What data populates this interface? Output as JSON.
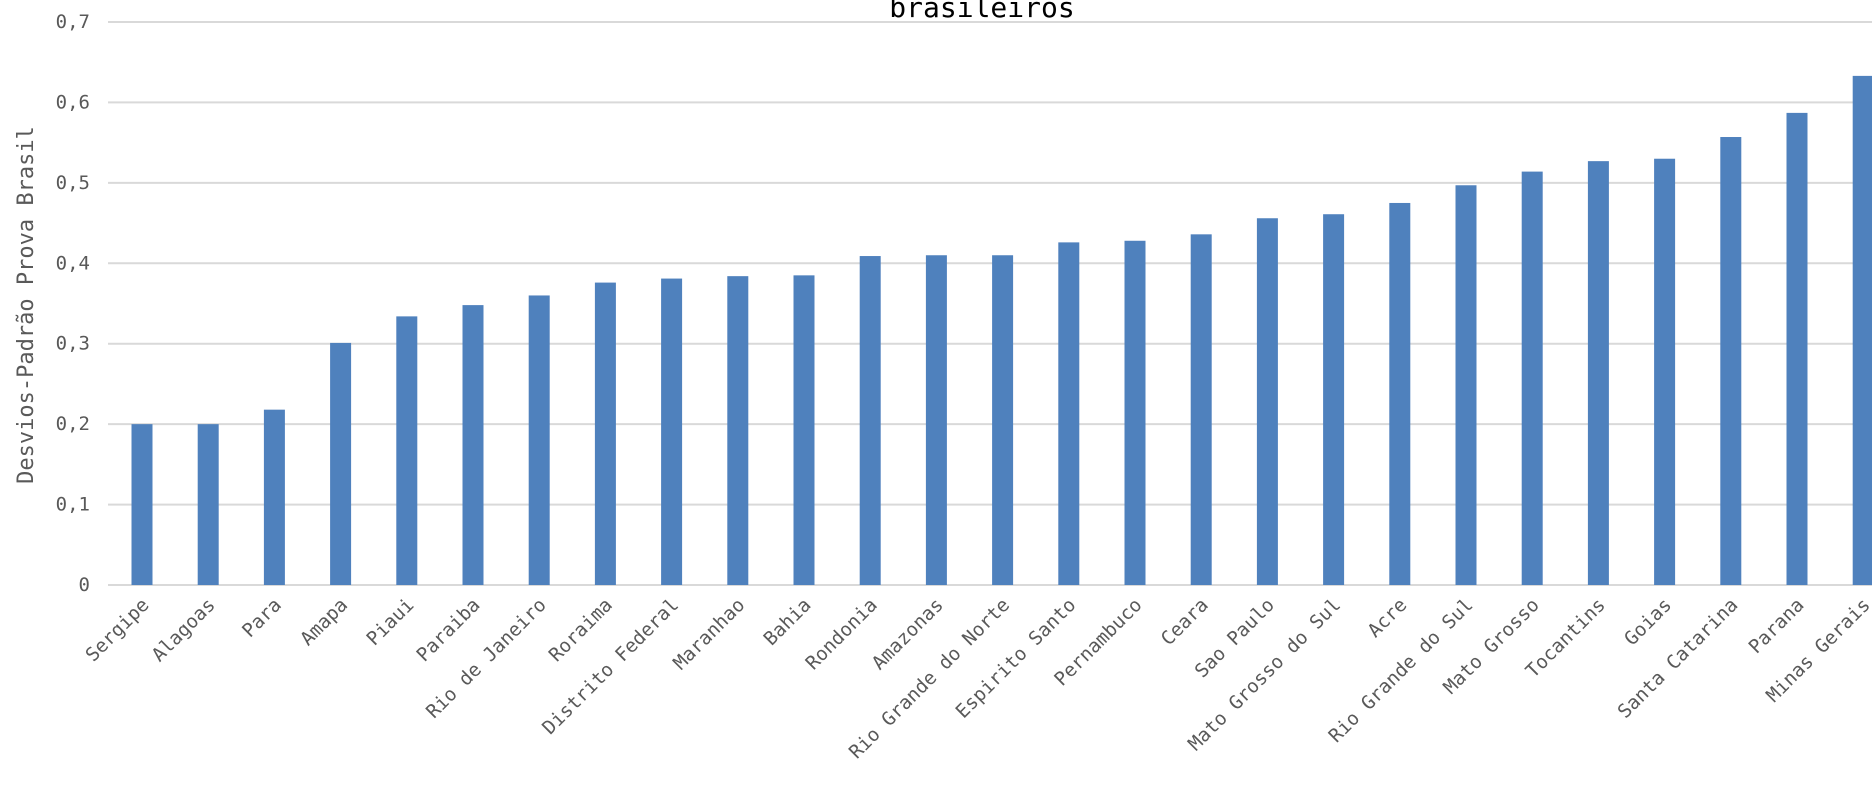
{
  "chart_data": {
    "type": "bar",
    "title": "brasileiros",
    "xlabel": "",
    "ylabel": "Desvios-Padrão Prova Brasil",
    "ylim": [
      0,
      0.7
    ],
    "y_ticks": [
      "0",
      "0,1",
      "0,2",
      "0,3",
      "0,4",
      "0,5",
      "0,6",
      "0,7"
    ],
    "grid": true,
    "legend": "none",
    "bar_color": "#4f81bd",
    "categories": [
      "Sergipe",
      "Alagoas",
      "Para",
      "Amapa",
      "Piaui",
      "Paraiba",
      "Rio de Janeiro",
      "Roraima",
      "Distrito Federal",
      "Maranhao",
      "Bahia",
      "Rondonia",
      "Amazonas",
      "Rio Grande do Norte",
      "Espirito Santo",
      "Pernambuco",
      "Ceara",
      "Sao Paulo",
      "Mato Grosso do Sul",
      "Acre",
      "Rio Grande do Sul",
      "Mato Grosso",
      "Tocantins",
      "Goias",
      "Santa Catarina",
      "Parana",
      "Minas Gerais"
    ],
    "values": [
      0.2,
      0.2,
      0.218,
      0.301,
      0.334,
      0.348,
      0.36,
      0.376,
      0.381,
      0.384,
      0.385,
      0.409,
      0.41,
      0.41,
      0.426,
      0.428,
      0.436,
      0.456,
      0.461,
      0.475,
      0.497,
      0.514,
      0.527,
      0.53,
      0.557,
      0.587,
      0.633
    ]
  }
}
